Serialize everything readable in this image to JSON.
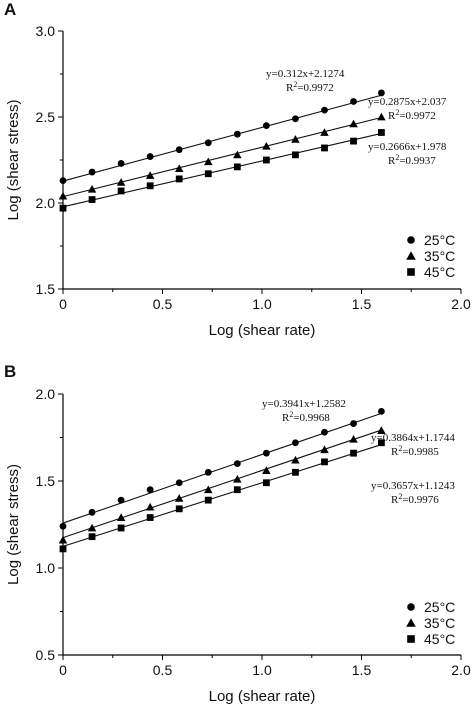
{
  "panels": [
    {
      "letter": "A"
    },
    {
      "letter": "B"
    }
  ],
  "chart_data": [
    {
      "type": "scatter",
      "title": "",
      "xlabel": "Log (shear rate)",
      "ylabel": "Log (shear stress)",
      "xlim": [
        0,
        2.0
      ],
      "ylim": [
        1.5,
        3.0
      ],
      "xticks": [
        "0",
        "0.5",
        "1.0",
        "1.5",
        "2.0"
      ],
      "yticks": [
        "1.5",
        "2.0",
        "2.5",
        "3.0"
      ],
      "legend_position": "bottom-right",
      "x": [
        0,
        0.146,
        0.292,
        0.438,
        0.584,
        0.73,
        0.876,
        1.022,
        1.168,
        1.314,
        1.46,
        1.6
      ],
      "series": [
        {
          "name": "25°C",
          "marker": "circle",
          "slope": 0.312,
          "intercept": 2.1274,
          "equation": "y=0.312x+2.1274",
          "r2_label": "R",
          "r2_value": "=0.9972",
          "values": [
            2.13,
            2.18,
            2.23,
            2.27,
            2.31,
            2.35,
            2.4,
            2.45,
            2.49,
            2.54,
            2.59,
            2.64
          ]
        },
        {
          "name": "35°C",
          "marker": "triangle",
          "slope": 0.2875,
          "intercept": 2.037,
          "equation": "y=0.2875x+2.037",
          "r2_label": "R",
          "r2_value": "=0.9972",
          "values": [
            2.04,
            2.08,
            2.12,
            2.16,
            2.2,
            2.24,
            2.28,
            2.33,
            2.37,
            2.41,
            2.46,
            2.5
          ]
        },
        {
          "name": "45°C",
          "marker": "square",
          "slope": 0.2666,
          "intercept": 1.978,
          "equation": "y=0.2666x+1.978",
          "r2_label": "R",
          "r2_value": "=0.9937",
          "values": [
            1.97,
            2.02,
            2.07,
            2.1,
            2.14,
            2.17,
            2.21,
            2.25,
            2.28,
            2.32,
            2.36,
            2.41
          ]
        }
      ]
    },
    {
      "type": "scatter",
      "title": "",
      "xlabel": "Log (shear rate)",
      "ylabel": "Log (shear stress)",
      "xlim": [
        0,
        2.0
      ],
      "ylim": [
        0.5,
        2.0
      ],
      "xticks": [
        "0",
        "0.5",
        "1.0",
        "1.5",
        "2.0"
      ],
      "yticks": [
        "0.5",
        "1.0",
        "1.5",
        "2.0"
      ],
      "legend_position": "bottom-right",
      "x": [
        0,
        0.146,
        0.292,
        0.438,
        0.584,
        0.73,
        0.876,
        1.022,
        1.168,
        1.314,
        1.46,
        1.6
      ],
      "series": [
        {
          "name": "25°C",
          "marker": "circle",
          "slope": 0.3941,
          "intercept": 1.2582,
          "equation": "y=0.3941x+1.2582",
          "r2_label": "R",
          "r2_value": "=0.9968",
          "values": [
            1.24,
            1.32,
            1.39,
            1.45,
            1.49,
            1.55,
            1.6,
            1.66,
            1.72,
            1.78,
            1.83,
            1.9
          ]
        },
        {
          "name": "35°C",
          "marker": "triangle",
          "slope": 0.3864,
          "intercept": 1.1744,
          "equation": "y=0.3864x+1.1744",
          "r2_label": "R",
          "r2_value": "=0.9985",
          "values": [
            1.16,
            1.23,
            1.29,
            1.35,
            1.4,
            1.45,
            1.51,
            1.56,
            1.62,
            1.68,
            1.74,
            1.79
          ]
        },
        {
          "name": "45°C",
          "marker": "square",
          "slope": 0.3657,
          "intercept": 1.1243,
          "equation": "y=0.3657x+1.1243",
          "r2_label": "R",
          "r2_value": "=0.9976",
          "values": [
            1.11,
            1.18,
            1.23,
            1.29,
            1.34,
            1.39,
            1.45,
            1.49,
            1.55,
            1.61,
            1.66,
            1.72
          ]
        }
      ]
    }
  ]
}
